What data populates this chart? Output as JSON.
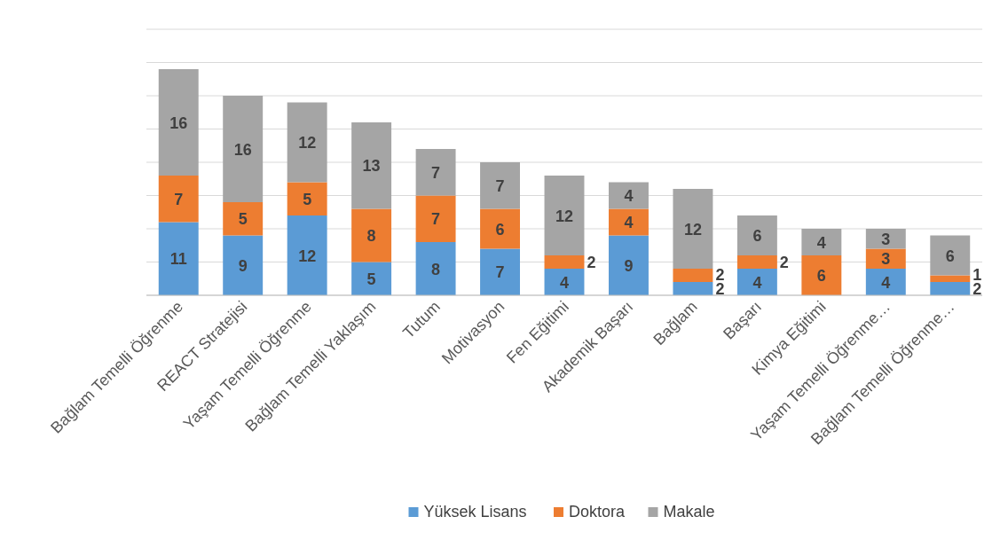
{
  "chart_data": {
    "type": "bar",
    "stacked": true,
    "data_labels": true,
    "grid": "y",
    "legend": "bottom",
    "tick_labels": "x",
    "categories": [
      "Bağlam Temelli Öğrenme",
      "REACT Stratejisi",
      "Yaşam Temelli Öğrenme",
      "Bağlam Temelli Yaklaşım",
      "Tutum",
      "Motivasyon",
      "Fen Eğitimi",
      "Akademik Başarı",
      "Bağlam",
      "Başarı",
      "Kimya Eğitimi",
      "Yaşam Temelli Öğrenme…",
      "Bağlam Temelli Öğrenme…"
    ],
    "ylim": [
      0,
      40
    ],
    "yticks": [
      {
        "value": 0,
        "label": null
      },
      {
        "value": 5,
        "label": null
      },
      {
        "value": 10,
        "label": null
      },
      {
        "value": 15,
        "label": null
      },
      {
        "value": 20,
        "label": null
      },
      {
        "value": 25,
        "label": null
      },
      {
        "value": 30,
        "label": null
      },
      {
        "value": 35,
        "label": null
      },
      {
        "value": 40,
        "label": null
      }
    ],
    "series": [
      {
        "name": "Yüksek Lisans",
        "color": "#5b9bd5",
        "values": [
          11,
          9,
          12,
          5,
          8,
          7,
          4,
          9,
          2,
          4,
          null,
          4,
          2
        ]
      },
      {
        "name": "Doktora",
        "color": "#ed7d31",
        "values": [
          7,
          5,
          5,
          8,
          7,
          6,
          2,
          4,
          2,
          2,
          6,
          3,
          1
        ]
      },
      {
        "name": "Makale",
        "color": "#a5a5a5",
        "values": [
          16,
          16,
          12,
          13,
          7,
          7,
          12,
          4,
          12,
          6,
          4,
          3,
          6
        ]
      }
    ]
  }
}
